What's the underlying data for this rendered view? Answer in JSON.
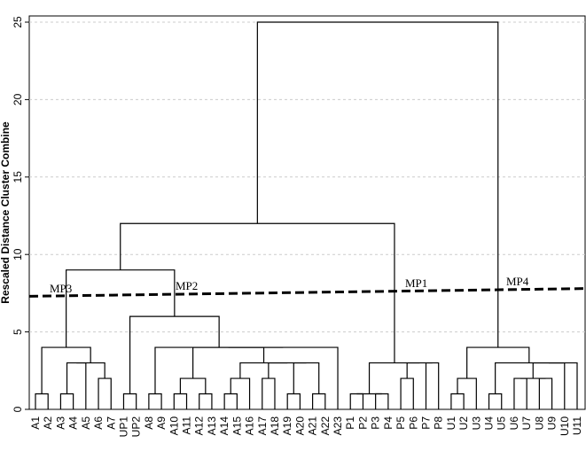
{
  "chart_data": {
    "type": "dendrogram",
    "y_label": "Rescaled Distance Cluster Combine",
    "categories": [
      "A1",
      "A2",
      "A3",
      "A4",
      "A5",
      "A6",
      "A7",
      "UP1",
      "UP2",
      "A8",
      "A9",
      "A10",
      "A11",
      "A12",
      "A13",
      "A14",
      "A15",
      "A16",
      "A17",
      "A18",
      "A19",
      "A20",
      "A21",
      "A22",
      "A23",
      "P1",
      "P2",
      "P3",
      "P4",
      "P5",
      "P6",
      "P7",
      "P8",
      "U1",
      "U2",
      "U3",
      "U4",
      "U5",
      "U6",
      "U7",
      "U8",
      "U9",
      "U10",
      "U11"
    ],
    "merges": [
      {
        "children": [
          0,
          1
        ],
        "height": 1
      },
      {
        "children": [
          2,
          3
        ],
        "height": 1
      },
      {
        "children": [
          45,
          4
        ],
        "height": 3
      },
      {
        "children": [
          5,
          6
        ],
        "height": 2
      },
      {
        "children": [
          46,
          47
        ],
        "height": 3
      },
      {
        "children": [
          44,
          48
        ],
        "height": 4
      },
      {
        "children": [
          7,
          8
        ],
        "height": 1
      },
      {
        "children": [
          9,
          10
        ],
        "height": 1
      },
      {
        "children": [
          11,
          12
        ],
        "height": 1
      },
      {
        "children": [
          13,
          14
        ],
        "height": 1
      },
      {
        "children": [
          52,
          53
        ],
        "height": 2
      },
      {
        "children": [
          15,
          16
        ],
        "height": 1
      },
      {
        "children": [
          55,
          17
        ],
        "height": 2
      },
      {
        "children": [
          18,
          19
        ],
        "height": 2
      },
      {
        "children": [
          20,
          21
        ],
        "height": 1
      },
      {
        "children": [
          22,
          23
        ],
        "height": 1
      },
      {
        "children": [
          58,
          59
        ],
        "height": 3
      },
      {
        "children": [
          57,
          60
        ],
        "height": 3
      },
      {
        "children": [
          56,
          61
        ],
        "height": 3
      },
      {
        "children": [
          54,
          62
        ],
        "height": 4
      },
      {
        "children": [
          63,
          24
        ],
        "height": 4
      },
      {
        "children": [
          51,
          64
        ],
        "height": 4
      },
      {
        "children": [
          50,
          65
        ],
        "height": 6
      },
      {
        "children": [
          49,
          66
        ],
        "height": 9
      },
      {
        "children": [
          25,
          26
        ],
        "height": 1
      },
      {
        "children": [
          27,
          28
        ],
        "height": 1
      },
      {
        "children": [
          68,
          69
        ],
        "height": 1
      },
      {
        "children": [
          29,
          30
        ],
        "height": 2
      },
      {
        "children": [
          31,
          32
        ],
        "height": 3
      },
      {
        "children": [
          71,
          72
        ],
        "height": 3
      },
      {
        "children": [
          70,
          73
        ],
        "height": 3
      },
      {
        "children": [
          67,
          74
        ],
        "height": 12
      },
      {
        "children": [
          33,
          34
        ],
        "height": 1
      },
      {
        "children": [
          76,
          35
        ],
        "height": 2
      },
      {
        "children": [
          36,
          37
        ],
        "height": 1
      },
      {
        "children": [
          38,
          39
        ],
        "height": 2
      },
      {
        "children": [
          40,
          41
        ],
        "height": 2
      },
      {
        "children": [
          79,
          80
        ],
        "height": 2
      },
      {
        "children": [
          81,
          42
        ],
        "height": 3
      },
      {
        "children": [
          82,
          43
        ],
        "height": 3
      },
      {
        "children": [
          78,
          83
        ],
        "height": 3
      },
      {
        "children": [
          77,
          84
        ],
        "height": 4
      },
      {
        "children": [
          75,
          85
        ],
        "height": 25
      }
    ],
    "cut_line": [
      7.3,
      7.8
    ],
    "annotations": [
      "MP3",
      "MP2",
      "MP1",
      "MP4"
    ],
    "ylim": [
      0,
      25.4
    ],
    "yticks": [
      0,
      5,
      10,
      15,
      20,
      25
    ],
    "grid": true,
    "color": "#000000"
  }
}
